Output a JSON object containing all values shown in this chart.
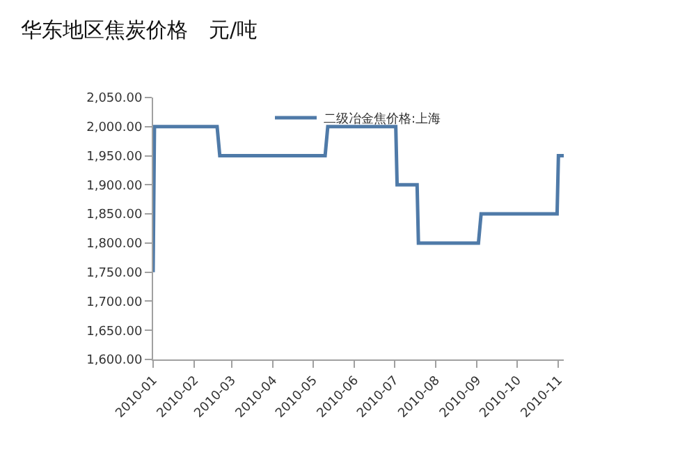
{
  "chart_data": {
    "type": "line",
    "title": "华东地区焦炭价格　元/吨",
    "x": [
      "2010-01-01",
      "2010-01-02",
      "2010-02-18",
      "2010-02-20",
      "2010-05-10",
      "2010-05-12",
      "2010-07-02",
      "2010-07-03",
      "2010-07-18",
      "2010-07-19",
      "2010-09-02",
      "2010-09-04",
      "2010-10-31",
      "2010-11-01",
      "2010-11-05"
    ],
    "series": [
      {
        "name": "二级冶金焦价格:上海",
        "color": "#4f7aa8",
        "values": [
          1750,
          2000,
          2000,
          1950,
          1950,
          2000,
          2000,
          1900,
          1900,
          1800,
          1800,
          1850,
          1850,
          1950,
          1950
        ]
      }
    ],
    "xlim": [
      "2010-01-01",
      "2010-11-05"
    ],
    "xticks": [
      "2010-01",
      "2010-02",
      "2010-03",
      "2010-04",
      "2010-05",
      "2010-06",
      "2010-07",
      "2010-08",
      "2010-09",
      "2010-10",
      "2010-11"
    ],
    "ylim": [
      1600,
      2050
    ],
    "yticks": [
      {
        "value": 1600,
        "label": "1,600.00"
      },
      {
        "value": 1650,
        "label": "1,650.00"
      },
      {
        "value": 1700,
        "label": "1,700.00"
      },
      {
        "value": 1750,
        "label": "1,750.00"
      },
      {
        "value": 1800,
        "label": "1,800.00"
      },
      {
        "value": 1850,
        "label": "1,850.00"
      },
      {
        "value": 1900,
        "label": "1,900.00"
      },
      {
        "value": 1950,
        "label": "1,950.00"
      },
      {
        "value": 2000,
        "label": "2,000.00"
      },
      {
        "value": 2050,
        "label": "2,050.00"
      }
    ],
    "legend": "top",
    "marker": "none",
    "line_style": "solid"
  }
}
